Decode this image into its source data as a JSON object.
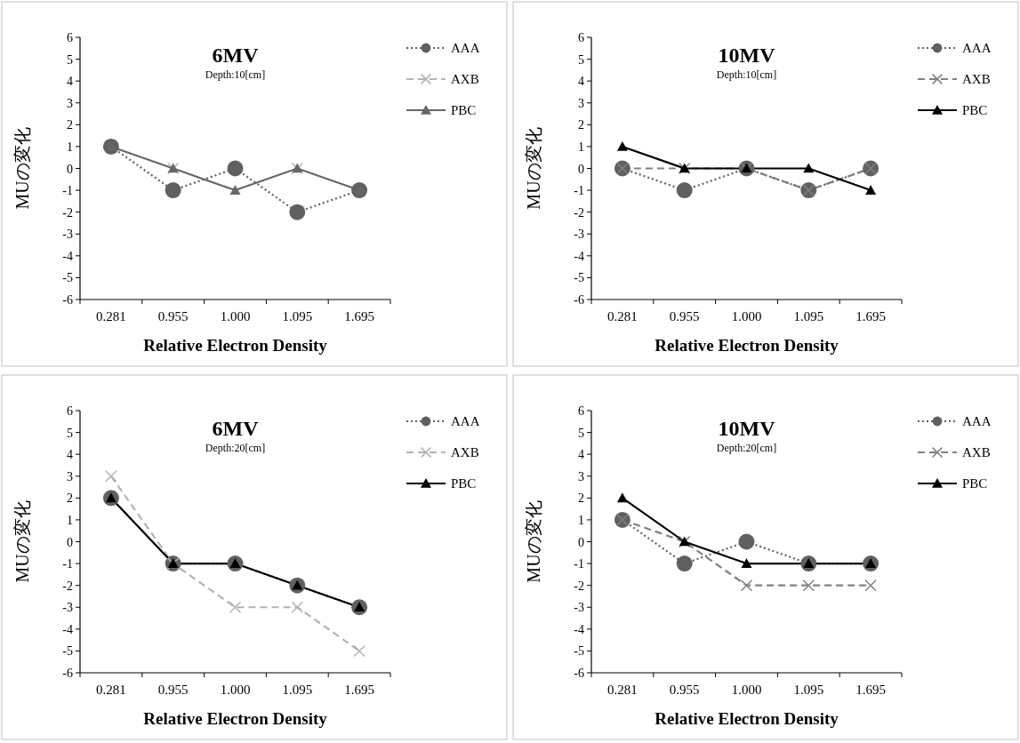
{
  "chart_data": [
    {
      "type": "line",
      "title": "6MV",
      "subtitle": "Depth:10[cm]",
      "xlabel": "Relative Electron Density",
      "ylabel": "MUの変化",
      "categories": [
        "0.281",
        "0.955",
        "1.000",
        "1.095",
        "1.695"
      ],
      "ylim": [
        -6,
        6
      ],
      "yticks": [
        -6,
        -5,
        -4,
        -3,
        -2,
        -1,
        0,
        1,
        2,
        3,
        4,
        5,
        6
      ],
      "legend": "right",
      "series": [
        {
          "name": "AAA",
          "color": "#606060",
          "marker": "circle",
          "line_style": "dotted",
          "values": [
            1,
            -1,
            0,
            -2,
            -1
          ]
        },
        {
          "name": "AXB",
          "color": "#b3b3b3",
          "marker": "cross",
          "line_style": "dashed",
          "values": [
            null,
            0,
            null,
            0,
            null
          ]
        },
        {
          "name": "PBC",
          "color": "#666666",
          "marker": "triangle",
          "line_style": "solid",
          "values": [
            1,
            0,
            -1,
            0,
            -1
          ]
        }
      ]
    },
    {
      "type": "line",
      "title": "10MV",
      "subtitle": "Depth:10[cm]",
      "xlabel": "Relative Electron Density",
      "ylabel": "MUの変化",
      "categories": [
        "0.281",
        "0.955",
        "1.000",
        "1.095",
        "1.695"
      ],
      "ylim": [
        -6,
        6
      ],
      "yticks": [
        -6,
        -5,
        -4,
        -3,
        -2,
        -1,
        0,
        1,
        2,
        3,
        4,
        5,
        6
      ],
      "legend": "right",
      "series": [
        {
          "name": "AAA",
          "color": "#606060",
          "marker": "circle",
          "line_style": "dotted",
          "values": [
            0,
            -1,
            0,
            -1,
            0
          ]
        },
        {
          "name": "AXB",
          "color": "#808080",
          "marker": "cross",
          "line_style": "dashed",
          "values": [
            0,
            0,
            0,
            -1,
            0
          ]
        },
        {
          "name": "PBC",
          "color": "#000000",
          "marker": "triangle",
          "line_style": "solid",
          "values": [
            1,
            0,
            0,
            0,
            -1
          ]
        }
      ]
    },
    {
      "type": "line",
      "title": "6MV",
      "subtitle": "Depth:20[cm]",
      "xlabel": "Relative Electron Density",
      "ylabel": "MUの変化",
      "categories": [
        "0.281",
        "0.955",
        "1.000",
        "1.095",
        "1.695"
      ],
      "ylim": [
        -6,
        6
      ],
      "yticks": [
        -6,
        -5,
        -4,
        -3,
        -2,
        -1,
        0,
        1,
        2,
        3,
        4,
        5,
        6
      ],
      "legend": "right",
      "series": [
        {
          "name": "AAA",
          "color": "#606060",
          "marker": "circle",
          "line_style": "dotted",
          "values": [
            2,
            -1,
            -1,
            -2,
            -3
          ]
        },
        {
          "name": "AXB",
          "color": "#b3b3b3",
          "marker": "cross",
          "line_style": "dashed",
          "values": [
            3,
            -1,
            -3,
            -3,
            -5
          ]
        },
        {
          "name": "PBC",
          "color": "#000000",
          "marker": "triangle",
          "line_style": "solid",
          "values": [
            2,
            -1,
            -1,
            -2,
            -3
          ]
        }
      ]
    },
    {
      "type": "line",
      "title": "10MV",
      "subtitle": "Depth:20[cm]",
      "xlabel": "Relative Electron Density",
      "ylabel": "MUの変化",
      "categories": [
        "0.281",
        "0.955",
        "1.000",
        "1.095",
        "1.695"
      ],
      "ylim": [
        -6,
        6
      ],
      "yticks": [
        -6,
        -5,
        -4,
        -3,
        -2,
        -1,
        0,
        1,
        2,
        3,
        4,
        5,
        6
      ],
      "legend": "right",
      "series": [
        {
          "name": "AAA",
          "color": "#606060",
          "marker": "circle",
          "line_style": "dotted",
          "values": [
            1,
            -1,
            0,
            -1,
            -1
          ]
        },
        {
          "name": "AXB",
          "color": "#808080",
          "marker": "cross",
          "line_style": "dashed",
          "values": [
            1,
            0,
            -2,
            -2,
            -2
          ]
        },
        {
          "name": "PBC",
          "color": "#000000",
          "marker": "triangle",
          "line_style": "solid",
          "values": [
            2,
            0,
            -1,
            -1,
            -1
          ]
        }
      ]
    }
  ]
}
